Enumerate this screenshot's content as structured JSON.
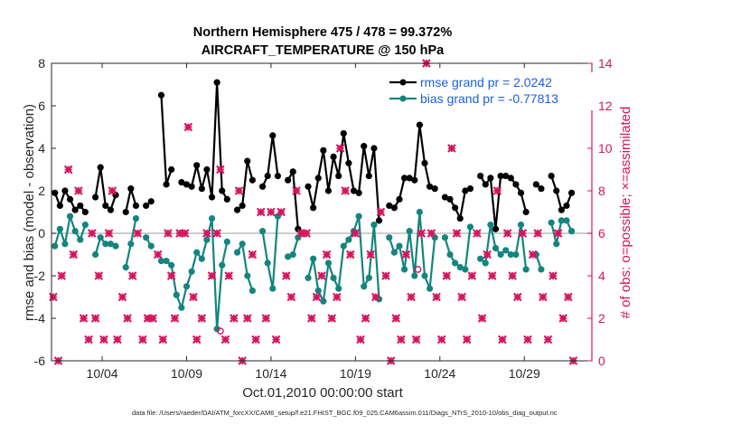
{
  "chart_data": {
    "type": "line",
    "title": "Northern Hemisphere 475 / 478 = 99.372%",
    "subtitle": "AIRCRAFT_TEMPERATURE @ 150 hPa",
    "xlabel": "Oct.01,2010 00:00:00 start",
    "ylabel": "rmse and bias (model - observation)",
    "ylabel_right": "# of obs: o=possible; ×=assimilated",
    "footnote": "data file: /Users/raeder/DAI/ATM_forcXX/CAM6_setup/f.e21.FHIST_BGC.f09_025.CAM6assim.011/Diags_NTrS_2010-10/obs_diag_output.nc",
    "xlim": [
      1,
      33
    ],
    "ylim": [
      -6,
      8
    ],
    "ylim_right": [
      0,
      14
    ],
    "x_ticks": [
      4,
      9,
      14,
      19,
      24,
      29
    ],
    "x_tick_labels": [
      "10/04",
      "10/09",
      "10/14",
      "10/19",
      "10/24",
      "10/29"
    ],
    "y_ticks": [
      -6,
      -4,
      -2,
      0,
      2,
      4,
      6,
      8
    ],
    "y_tick_labels": [
      "-6",
      "-4",
      "-2",
      "0",
      "2",
      "4",
      "6",
      "8"
    ],
    "y_right_ticks": [
      0,
      2,
      4,
      6,
      8,
      10,
      12,
      14
    ],
    "y_right_tick_labels": [
      "0",
      "2",
      "4",
      "6",
      "8",
      "10",
      "12",
      "14"
    ],
    "legend": {
      "position": "top-right",
      "entries": [
        "rmse grand pr = 2.0242",
        "bias grand pr = -0.77813"
      ]
    },
    "colors": {
      "rmse": "#000000",
      "bias": "#13857e",
      "obs": "#d6145f",
      "zero_line": "#bdbdbd",
      "legend_text": "#1a5fe0"
    },
    "series": [
      {
        "name": "rmse grand pr = 2.0242",
        "x": [
          1.2,
          1.5,
          1.8,
          2.1,
          2.4,
          2.7,
          3.0,
          null,
          3.6,
          3.9,
          4.2,
          4.5,
          4.8,
          null,
          5.4,
          5.7,
          6.0,
          null,
          6.6,
          6.9,
          null,
          7.5,
          7.8,
          8.1,
          8.4,
          8.7,
          9.0,
          9.3,
          9.6,
          9.9,
          10.2,
          10.5,
          10.8,
          11.1,
          11.4,
          null,
          12.0,
          12.3,
          12.6,
          12.9,
          null,
          13.5,
          13.8,
          14.1,
          14.4,
          null,
          15.0,
          15.3,
          15.6,
          null,
          16.2,
          16.5,
          16.8,
          17.1,
          17.4,
          17.7,
          18.0,
          18.3,
          18.6,
          18.9,
          19.2,
          19.5,
          19.8,
          20.1,
          20.4,
          null,
          21.0,
          21.3,
          21.6,
          21.9,
          22.2,
          22.5,
          22.8,
          23.1,
          23.4,
          23.7,
          null,
          24.3,
          24.6,
          24.9,
          25.2,
          25.5,
          25.8,
          null,
          26.4,
          26.7,
          27.0,
          27.3,
          27.6,
          27.9,
          28.2,
          28.5,
          28.8,
          29.1,
          null,
          29.7,
          30.0,
          null,
          30.6,
          30.9,
          31.2,
          31.5,
          31.8
        ],
        "values": [
          1.9,
          1.3,
          2.0,
          1.6,
          1.1,
          1.3,
          1.0,
          null,
          1.7,
          3.1,
          1.3,
          1.1,
          1.8,
          null,
          1.0,
          2.1,
          1.3,
          null,
          1.3,
          1.5,
          null,
          6.5,
          2.3,
          3.0,
          null,
          2.4,
          2.3,
          2.2,
          3.2,
          2.1,
          3.0,
          1.7,
          7.1,
          2.0,
          1.6,
          null,
          1.1,
          1.3,
          3.4,
          2.5,
          null,
          2.2,
          2.7,
          4.6,
          2.7,
          null,
          2.5,
          2.9,
          0.2,
          null,
          2.2,
          1.2,
          2.6,
          3.9,
          2.0,
          3.6,
          2.7,
          4.7,
          3.3,
          2.0,
          1.9,
          4.1,
          2.7,
          4.0,
          0.6,
          null,
          1.3,
          1.2,
          1.6,
          2.6,
          2.6,
          2.5,
          5.1,
          3.3,
          2.2,
          2.1,
          null,
          1.7,
          1.6,
          1.2,
          0.7,
          2.0,
          2.1,
          null,
          2.7,
          2.3,
          2.6,
          0.2,
          2.7,
          2.7,
          2.6,
          2.3,
          1.9,
          1.0,
          null,
          2.3,
          2.1,
          null,
          2.7,
          2.0,
          1.1,
          1.3,
          1.9
        ]
      },
      {
        "name": "bias grand pr = -0.77813",
        "x": [
          1.2,
          1.5,
          1.8,
          2.1,
          2.4,
          2.7,
          3.0,
          null,
          3.6,
          3.9,
          4.2,
          4.5,
          4.8,
          null,
          5.4,
          5.7,
          6.0,
          null,
          6.6,
          6.9,
          null,
          7.5,
          7.8,
          8.1,
          8.4,
          8.7,
          9.0,
          9.3,
          9.6,
          9.9,
          10.2,
          10.5,
          10.8,
          11.1,
          11.4,
          null,
          12.0,
          12.3,
          12.6,
          12.9,
          null,
          13.5,
          13.8,
          14.1,
          14.4,
          null,
          15.0,
          15.3,
          15.6,
          null,
          16.2,
          16.5,
          16.8,
          17.1,
          17.4,
          17.7,
          18.0,
          18.3,
          18.6,
          18.9,
          19.2,
          19.5,
          19.8,
          20.1,
          20.4,
          null,
          21.0,
          21.3,
          21.6,
          21.9,
          22.2,
          22.5,
          22.8,
          23.1,
          23.4,
          23.7,
          null,
          24.3,
          24.6,
          24.9,
          25.2,
          25.5,
          25.8,
          null,
          26.4,
          26.7,
          27.0,
          27.3,
          27.6,
          27.9,
          28.2,
          28.5,
          28.8,
          29.1,
          null,
          29.7,
          30.0,
          null,
          30.6,
          30.9,
          31.2,
          31.5,
          31.8
        ],
        "values": [
          -0.6,
          0.2,
          -0.5,
          0.8,
          0.1,
          -0.3,
          0.4,
          null,
          -1.0,
          -0.2,
          -0.5,
          -0.5,
          -0.6,
          null,
          -1.6,
          -0.5,
          0.7,
          null,
          -0.2,
          -0.6,
          null,
          -1.3,
          -1.3,
          -1.5,
          -2.9,
          -3.5,
          -2.5,
          -1.8,
          -0.9,
          -1.2,
          -0.3,
          0.7,
          -4.5,
          -1.5,
          -0.4,
          null,
          -0.9,
          -0.5,
          -2.0,
          -2.7,
          null,
          0.1,
          -1.4,
          -2.6,
          0.8,
          null,
          -1.1,
          -1.0,
          -0.2,
          null,
          -2.1,
          -1.2,
          -2.7,
          -3.2,
          -1.4,
          -2.1,
          -2.6,
          -0.6,
          -0.3,
          0.1,
          0.8,
          -2.5,
          -2.1,
          0.4,
          -3.1,
          null,
          -0.2,
          -0.9,
          -0.6,
          -1.7,
          0.1,
          -2.0,
          1.0,
          -2.0,
          -2.6,
          -0.2,
          null,
          -0.2,
          -1.0,
          -1.4,
          -1.6,
          -1.7,
          0.3,
          null,
          -1.2,
          -1.4,
          0.4,
          -0.7,
          -1.0,
          -0.8,
          -1.0,
          -1.0,
          0.4,
          -1.7,
          null,
          -1.0,
          -1.7,
          null,
          0.5,
          -0.5,
          0.6,
          0.6,
          0.1
        ]
      },
      {
        "name": "assimilated obs",
        "axis": "right",
        "x": [
          1.1,
          1.4,
          1.6,
          2.0,
          2.3,
          2.6,
          2.9,
          3.2,
          3.4,
          3.6,
          3.8,
          4.1,
          4.4,
          4.6,
          4.9,
          5.2,
          5.5,
          5.8,
          6.1,
          6.4,
          6.7,
          7.0,
          7.3,
          7.6,
          7.9,
          8.1,
          8.3,
          8.6,
          8.9,
          9.1,
          9.4,
          9.6,
          9.9,
          10.2,
          10.5,
          10.8,
          11.0,
          11.3,
          11.5,
          11.8,
          12.1,
          12.3,
          12.6,
          12.9,
          13.1,
          13.4,
          13.7,
          14.0,
          14.3,
          14.6,
          14.9,
          15.2,
          15.5,
          15.8,
          16.1,
          16.4,
          16.7,
          17.0,
          17.3,
          17.6,
          17.9,
          18.1,
          18.4,
          18.7,
          19.0,
          19.3,
          19.6,
          19.9,
          20.2,
          20.5,
          20.8,
          21.1,
          21.4,
          21.7,
          22.0,
          22.3,
          22.6,
          22.9,
          23.2,
          23.5,
          23.8,
          24.1,
          24.4,
          24.7,
          25.0,
          25.3,
          25.6,
          25.9,
          26.2,
          26.5,
          26.8,
          27.1,
          27.4,
          27.7,
          28.0,
          28.3,
          28.6,
          28.9,
          29.2,
          29.5,
          29.8,
          30.1,
          30.4,
          30.7,
          31.0,
          31.3,
          31.6,
          31.9
        ],
        "values": [
          3,
          0,
          4,
          9,
          5,
          8,
          2,
          1,
          6,
          2,
          4,
          1,
          6,
          8,
          1,
          3,
          2,
          4,
          6,
          1,
          2,
          2,
          5,
          1,
          6,
          4,
          2,
          6,
          6,
          11,
          3,
          1,
          2,
          6,
          4,
          6,
          9,
          1,
          4,
          2,
          8,
          0,
          2,
          5,
          1,
          7,
          2,
          7,
          1,
          7,
          4,
          3,
          8,
          6,
          6,
          2,
          3,
          4,
          5,
          2,
          3,
          10,
          8,
          5,
          6,
          1,
          2,
          5,
          3,
          7,
          4,
          0,
          2,
          1,
          5,
          3,
          1,
          6,
          14,
          6,
          3,
          1,
          4,
          10,
          6,
          3,
          1,
          4,
          6,
          2,
          5,
          4,
          8,
          1,
          6,
          4,
          3,
          6,
          1,
          5,
          6,
          3,
          1,
          4,
          6,
          2,
          3,
          0
        ]
      },
      {
        "name": "possible obs",
        "axis": "right",
        "x": [
          11.0,
          22.7
        ],
        "values": [
          1.4,
          4.3
        ]
      }
    ]
  }
}
